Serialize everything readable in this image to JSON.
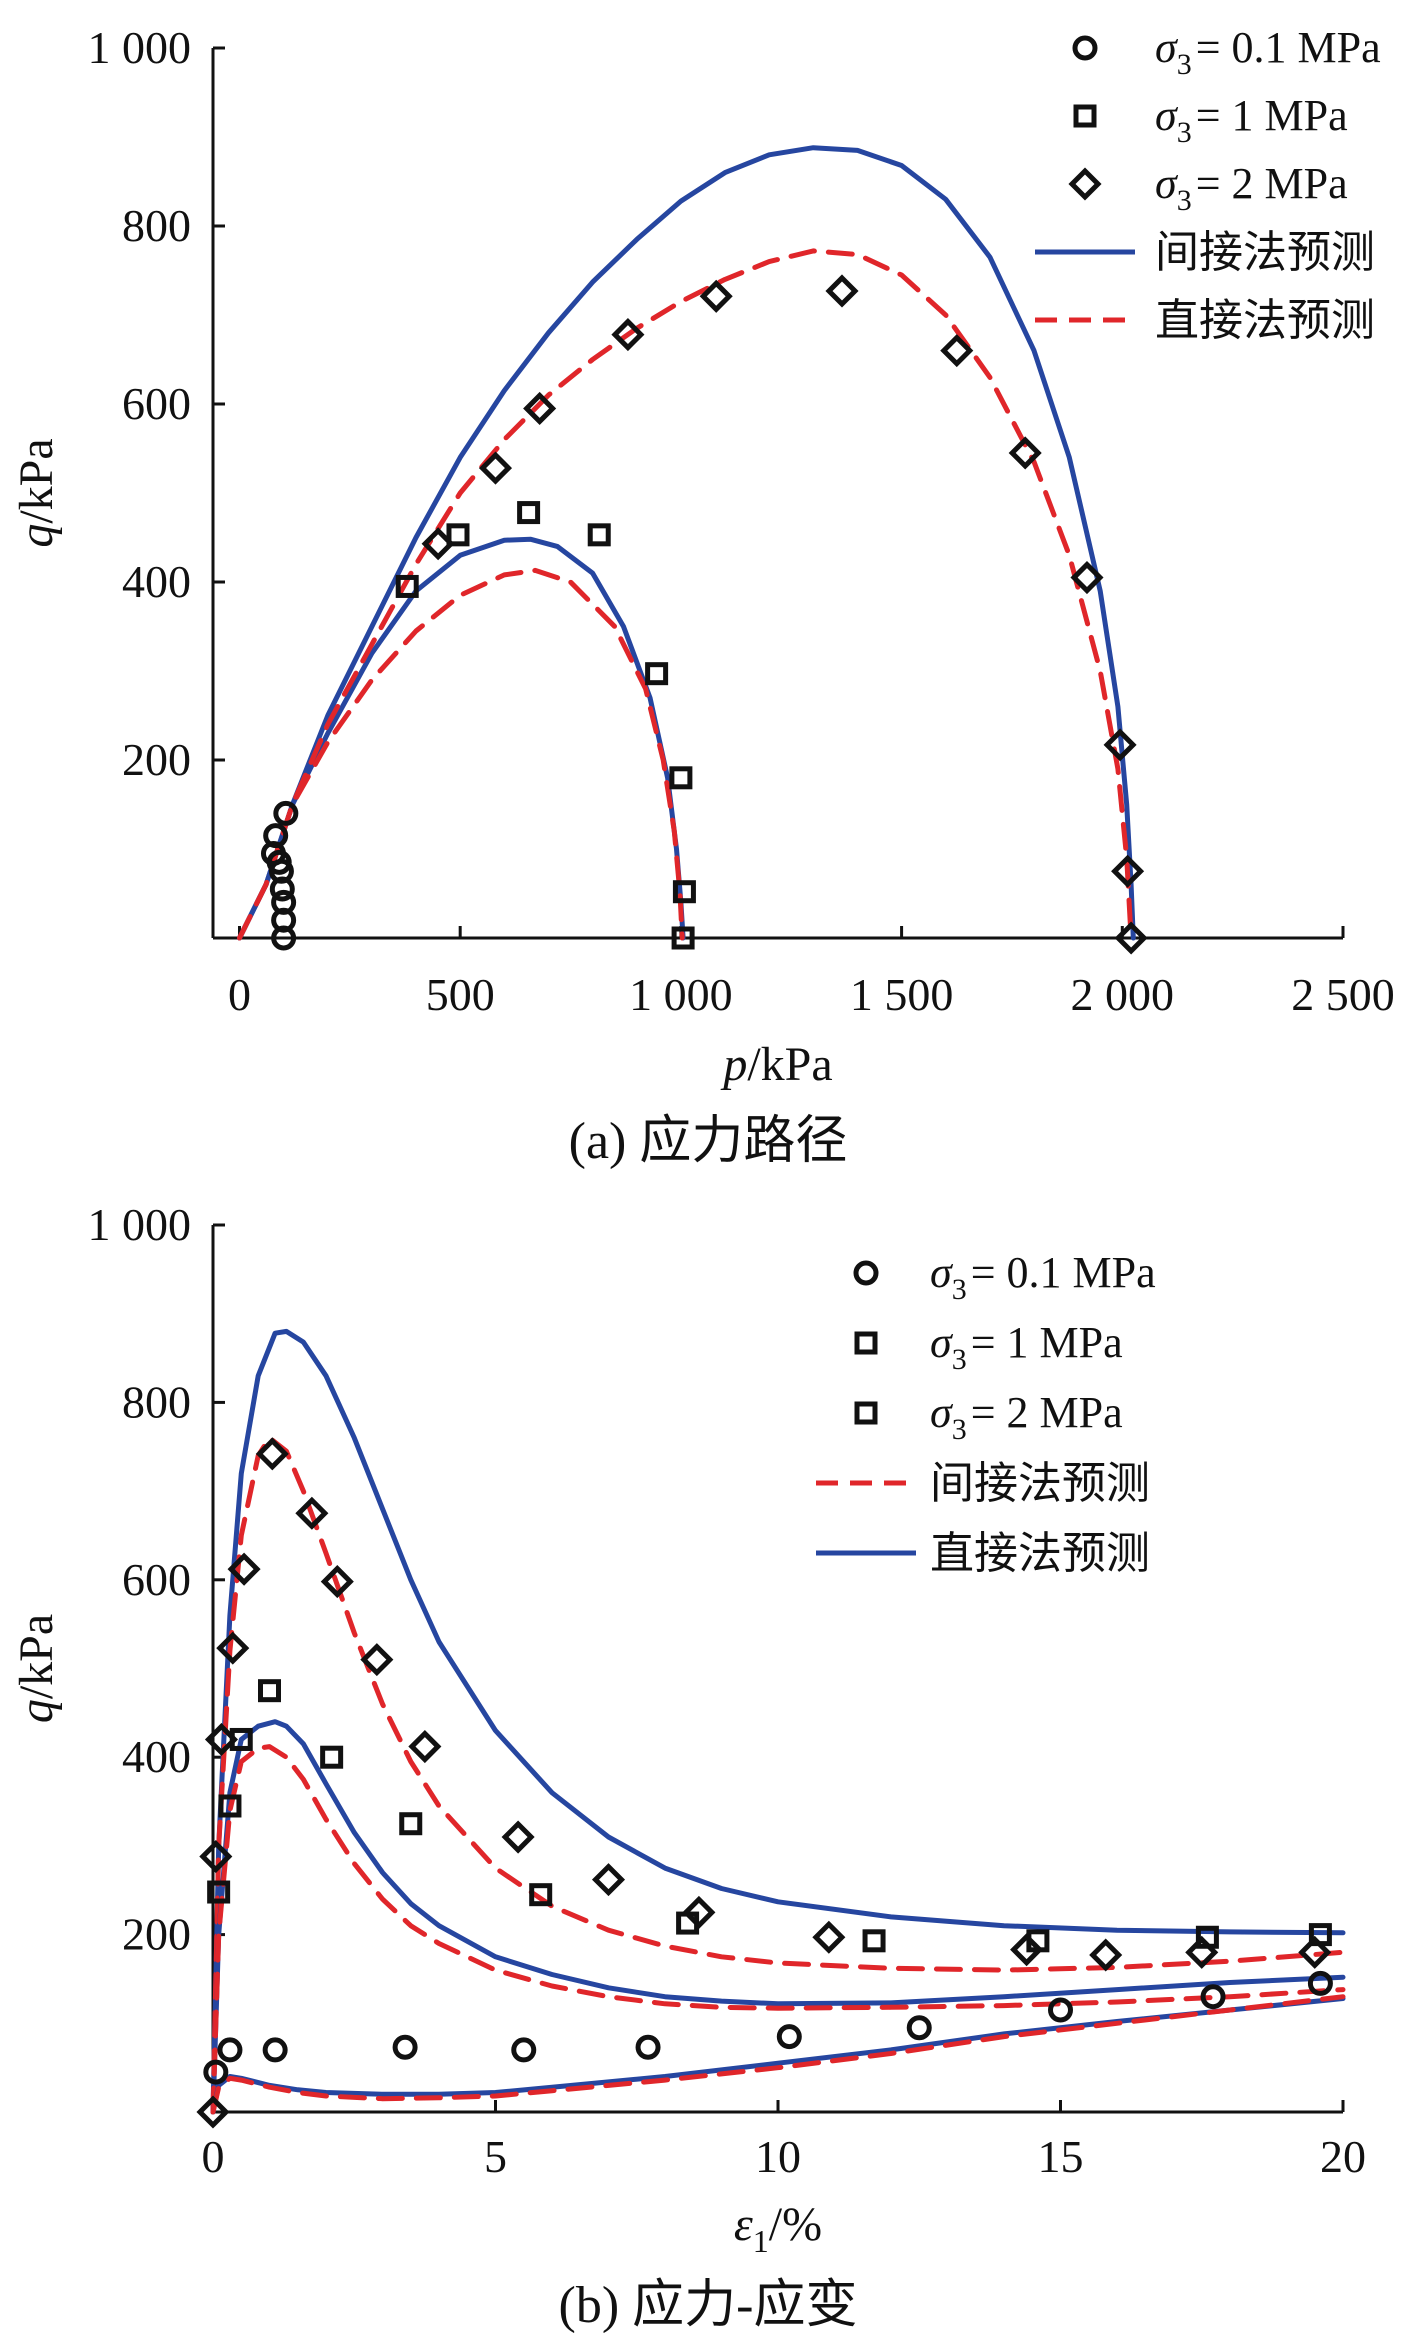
{
  "colors": {
    "blue": "#2646a0",
    "red": "#e0262a",
    "black": "#111111"
  },
  "chart_data": [
    {
      "id": "a",
      "type": "scatter",
      "caption": "(a) 应力路径",
      "xlabel_var": "p",
      "xlabel_unit": "/kPa",
      "ylabel_var": "q",
      "ylabel_unit": "/kPa",
      "xlim": [
        -60,
        2500
      ],
      "ylim": [
        0,
        1000
      ],
      "xticks": [
        0,
        500,
        1000,
        1500,
        2000,
        2500
      ],
      "xtick_labels": [
        "0",
        "500",
        "1 000",
        "1 500",
        "2 000",
        "2 500"
      ],
      "yticks": [
        200,
        400,
        600,
        800,
        1000
      ],
      "ytick_labels": [
        "200",
        "400",
        "600",
        "800",
        "1 000"
      ],
      "legend_placement": "top-right",
      "legend": [
        {
          "kind": "marker",
          "marker": "circle",
          "sym": "σ",
          "sub": "3",
          "text": "= 0.1 MPa"
        },
        {
          "kind": "marker",
          "marker": "square",
          "sym": "σ",
          "sub": "3",
          "text": "= 1 MPa"
        },
        {
          "kind": "marker",
          "marker": "diamond",
          "sym": "σ",
          "sub": "3",
          "text": "= 2 MPa"
        },
        {
          "kind": "line",
          "style": "solid",
          "color": "#2646a0",
          "text": "间接法预测"
        },
        {
          "kind": "line",
          "style": "dashed",
          "color": "#e0262a",
          "text": "直接法预测"
        }
      ],
      "series": [
        {
          "name": "σ3 = 0.1 MPa",
          "marker": "circle",
          "x": [
            100,
            100,
            100,
            97,
            95,
            90,
            77,
            82,
            105
          ],
          "y": [
            0,
            20,
            40,
            55,
            75,
            85,
            95,
            115,
            140
          ]
        },
        {
          "name": "σ3 = 1 MPa",
          "marker": "square",
          "x": [
            380,
            495,
            655,
            815,
            945,
            1000,
            1008,
            1005
          ],
          "y": [
            395,
            453,
            478,
            453,
            297,
            180,
            52,
            0
          ]
        },
        {
          "name": "σ3 = 2 MPa",
          "marker": "diamond",
          "x": [
            450,
            580,
            680,
            880,
            1080,
            1365,
            1625,
            1780,
            1920,
            1995,
            2012,
            2020
          ],
          "y": [
            443,
            528,
            595,
            678,
            721,
            727,
            660,
            545,
            405,
            217,
            75,
            0
          ]
        }
      ],
      "curves": [
        {
          "name": "间接法预测 σ3=1 MPa",
          "style": "solid",
          "color": "#2646a0",
          "x": [
            0,
            60,
            120,
            200,
            300,
            400,
            500,
            600,
            660,
            720,
            800,
            870,
            930,
            970,
            990,
            1000,
            1005
          ],
          "y": [
            0,
            60,
            150,
            230,
            320,
            390,
            430,
            447,
            448,
            440,
            410,
            350,
            270,
            180,
            100,
            40,
            0
          ]
        },
        {
          "name": "直接法预测 σ3=1 MPa",
          "style": "dashed",
          "color": "#e0262a",
          "x": [
            0,
            60,
            120,
            200,
            300,
            400,
            500,
            600,
            670,
            750,
            850,
            920,
            960,
            985,
            998,
            1003
          ],
          "y": [
            0,
            60,
            150,
            220,
            290,
            345,
            385,
            408,
            413,
            400,
            350,
            280,
            200,
            120,
            50,
            0
          ]
        },
        {
          "name": "间接法预测 σ3=2 MPa",
          "style": "solid",
          "color": "#2646a0",
          "x": [
            0,
            60,
            120,
            200,
            300,
            400,
            500,
            600,
            700,
            800,
            900,
            1000,
            1100,
            1200,
            1300,
            1400,
            1500,
            1600,
            1700,
            1800,
            1880,
            1950,
            1990,
            2010,
            2020,
            2025
          ],
          "y": [
            0,
            60,
            150,
            250,
            350,
            450,
            540,
            615,
            680,
            737,
            785,
            828,
            860,
            880,
            888,
            885,
            868,
            830,
            765,
            660,
            540,
            390,
            260,
            150,
            60,
            0
          ]
        },
        {
          "name": "直接法预测 σ3=2 MPa",
          "style": "dashed",
          "color": "#e0262a",
          "x": [
            0,
            60,
            120,
            200,
            300,
            400,
            500,
            600,
            700,
            800,
            900,
            1000,
            1100,
            1200,
            1300,
            1400,
            1500,
            1600,
            1700,
            1800,
            1880,
            1950,
            1990,
            2010,
            2020
          ],
          "y": [
            0,
            60,
            150,
            240,
            330,
            420,
            500,
            560,
            610,
            650,
            685,
            715,
            740,
            760,
            772,
            768,
            745,
            700,
            630,
            535,
            430,
            300,
            190,
            90,
            0
          ]
        }
      ]
    },
    {
      "id": "b",
      "type": "scatter",
      "caption": "(b) 应力-应变",
      "xlabel_var": "ε",
      "xlabel_sub": "1",
      "xlabel_unit": "/%",
      "ylabel_var": "q",
      "ylabel_unit": "/kPa",
      "xlim": [
        0,
        20
      ],
      "ylim": [
        0,
        1000
      ],
      "xticks": [
        0,
        5,
        10,
        15,
        20
      ],
      "xtick_labels": [
        "0",
        "5",
        "10",
        "15",
        "20"
      ],
      "yticks": [
        200,
        400,
        600,
        800,
        1000
      ],
      "ytick_labels": [
        "200",
        "400",
        "600",
        "800",
        "1 000"
      ],
      "legend_placement": "top-right",
      "legend": [
        {
          "kind": "marker",
          "marker": "circle",
          "sym": "σ",
          "sub": "3",
          "text": "= 0.1 MPa"
        },
        {
          "kind": "marker",
          "marker": "square",
          "sym": "σ",
          "sub": "3",
          "text": "= 1 MPa"
        },
        {
          "kind": "marker",
          "marker": "square",
          "sym": "σ",
          "sub": "3",
          "text": "= 2 MPa"
        },
        {
          "kind": "line",
          "style": "dashed",
          "color": "#e0262a",
          "text": "间接法预测"
        },
        {
          "kind": "line",
          "style": "solid",
          "color": "#2646a0",
          "text": "直接法预测"
        }
      ],
      "series": [
        {
          "name": "σ3 = 0.1 MPa",
          "marker": "circle",
          "x": [
            0.05,
            0.3,
            1.1,
            3.4,
            5.5,
            7.7,
            10.2,
            12.5,
            15.0,
            17.7,
            19.6
          ],
          "y": [
            45,
            70,
            70,
            73,
            70,
            73,
            85,
            95,
            115,
            130,
            145
          ]
        },
        {
          "name": "σ3 = 1 MPa",
          "marker": "square",
          "x": [
            0.1,
            0.3,
            0.5,
            1.0,
            2.1,
            3.5,
            5.8,
            8.4,
            11.7,
            14.6,
            17.6,
            19.6
          ],
          "y": [
            248,
            345,
            420,
            475,
            400,
            325,
            245,
            213,
            193,
            193,
            197,
            200
          ]
        },
        {
          "name": "σ3 = 2 MPa",
          "marker": "diamond",
          "x": [
            0,
            0.05,
            0.15,
            0.35,
            0.55,
            1.05,
            1.75,
            2.2,
            2.9,
            3.75,
            5.4,
            7.0,
            8.6,
            10.9,
            14.4,
            15.8,
            17.5,
            19.5
          ],
          "y": [
            0,
            288,
            420,
            523,
            612,
            742,
            675,
            598,
            510,
            412,
            310,
            262,
            225,
            197,
            183,
            177,
            180,
            180
          ]
        }
      ],
      "curves": [
        {
          "name": "直接法预测 σ3=2 MPa",
          "style": "solid",
          "color": "#2646a0",
          "x": [
            0,
            0.1,
            0.3,
            0.5,
            0.8,
            1.1,
            1.3,
            1.6,
            2.0,
            2.5,
            3.0,
            3.5,
            4.0,
            5.0,
            6.0,
            7.0,
            8.0,
            9.0,
            10.0,
            12.0,
            14.0,
            16.0,
            18.0,
            20.0
          ],
          "y": [
            0,
            300,
            560,
            720,
            830,
            878,
            880,
            868,
            830,
            760,
            680,
            600,
            530,
            430,
            360,
            310,
            275,
            252,
            237,
            220,
            210,
            205,
            203,
            202
          ]
        },
        {
          "name": "间接法预测 σ3=2 MPa",
          "style": "dashed",
          "color": "#e0262a",
          "x": [
            0,
            0.1,
            0.3,
            0.5,
            0.8,
            1.0,
            1.3,
            1.6,
            2.0,
            2.5,
            3.0,
            3.5,
            4.0,
            5.0,
            6.0,
            7.0,
            8.0,
            9.0,
            10.0,
            12.0,
            14.0,
            16.0,
            18.0,
            20.0
          ],
          "y": [
            0,
            300,
            520,
            650,
            740,
            760,
            745,
            700,
            630,
            540,
            460,
            395,
            345,
            275,
            232,
            205,
            187,
            175,
            168,
            162,
            160,
            163,
            170,
            180
          ]
        },
        {
          "name": "直接法预测 σ3=1 MPa",
          "style": "solid",
          "color": "#2646a0",
          "x": [
            0,
            0.1,
            0.3,
            0.5,
            0.8,
            1.1,
            1.3,
            1.6,
            2.0,
            2.5,
            3.0,
            3.5,
            4.0,
            5.0,
            6.0,
            7.0,
            8.0,
            9.0,
            10.0,
            12.0,
            14.0,
            16.0,
            18.0,
            20.0
          ],
          "y": [
            0,
            200,
            360,
            420,
            435,
            440,
            435,
            415,
            370,
            315,
            270,
            235,
            210,
            175,
            155,
            140,
            130,
            125,
            122,
            123,
            130,
            138,
            146,
            152
          ]
        },
        {
          "name": "间接法预测 σ3=1 MPa",
          "style": "dashed",
          "color": "#e0262a",
          "x": [
            0,
            0.1,
            0.3,
            0.5,
            0.8,
            1.0,
            1.3,
            1.6,
            2.0,
            2.5,
            3.0,
            3.5,
            4.0,
            5.0,
            6.0,
            7.0,
            8.0,
            9.0,
            10.0,
            12.0,
            14.0,
            16.0,
            18.0,
            20.0
          ],
          "y": [
            0,
            200,
            340,
            395,
            410,
            412,
            400,
            375,
            330,
            280,
            240,
            210,
            190,
            160,
            142,
            130,
            122,
            118,
            117,
            118,
            120,
            124,
            130,
            138
          ]
        },
        {
          "name": "直接法预测 σ3=0.1 MPa",
          "style": "solid",
          "color": "#2646a0",
          "x": [
            0,
            0.1,
            0.3,
            0.5,
            1.0,
            1.5,
            2.0,
            3.0,
            4.0,
            5.0,
            6.0,
            8.0,
            10.0,
            12.0,
            14.0,
            16.0,
            18.0,
            20.0
          ],
          "y": [
            0,
            30,
            40,
            38,
            30,
            25,
            22,
            20,
            20,
            22,
            28,
            40,
            55,
            70,
            88,
            102,
            115,
            128
          ]
        },
        {
          "name": "间接法预测 σ3=0.1 MPa",
          "style": "dashed",
          "color": "#e0262a",
          "x": [
            0,
            0.1,
            0.3,
            0.5,
            1.0,
            1.5,
            2.0,
            3.0,
            4.0,
            5.0,
            6.0,
            8.0,
            10.0,
            12.0,
            14.0,
            16.0,
            18.0,
            20.0
          ],
          "y": [
            0,
            28,
            38,
            36,
            28,
            22,
            18,
            15,
            16,
            18,
            24,
            36,
            50,
            66,
            85,
            100,
            115,
            130
          ]
        }
      ]
    }
  ]
}
